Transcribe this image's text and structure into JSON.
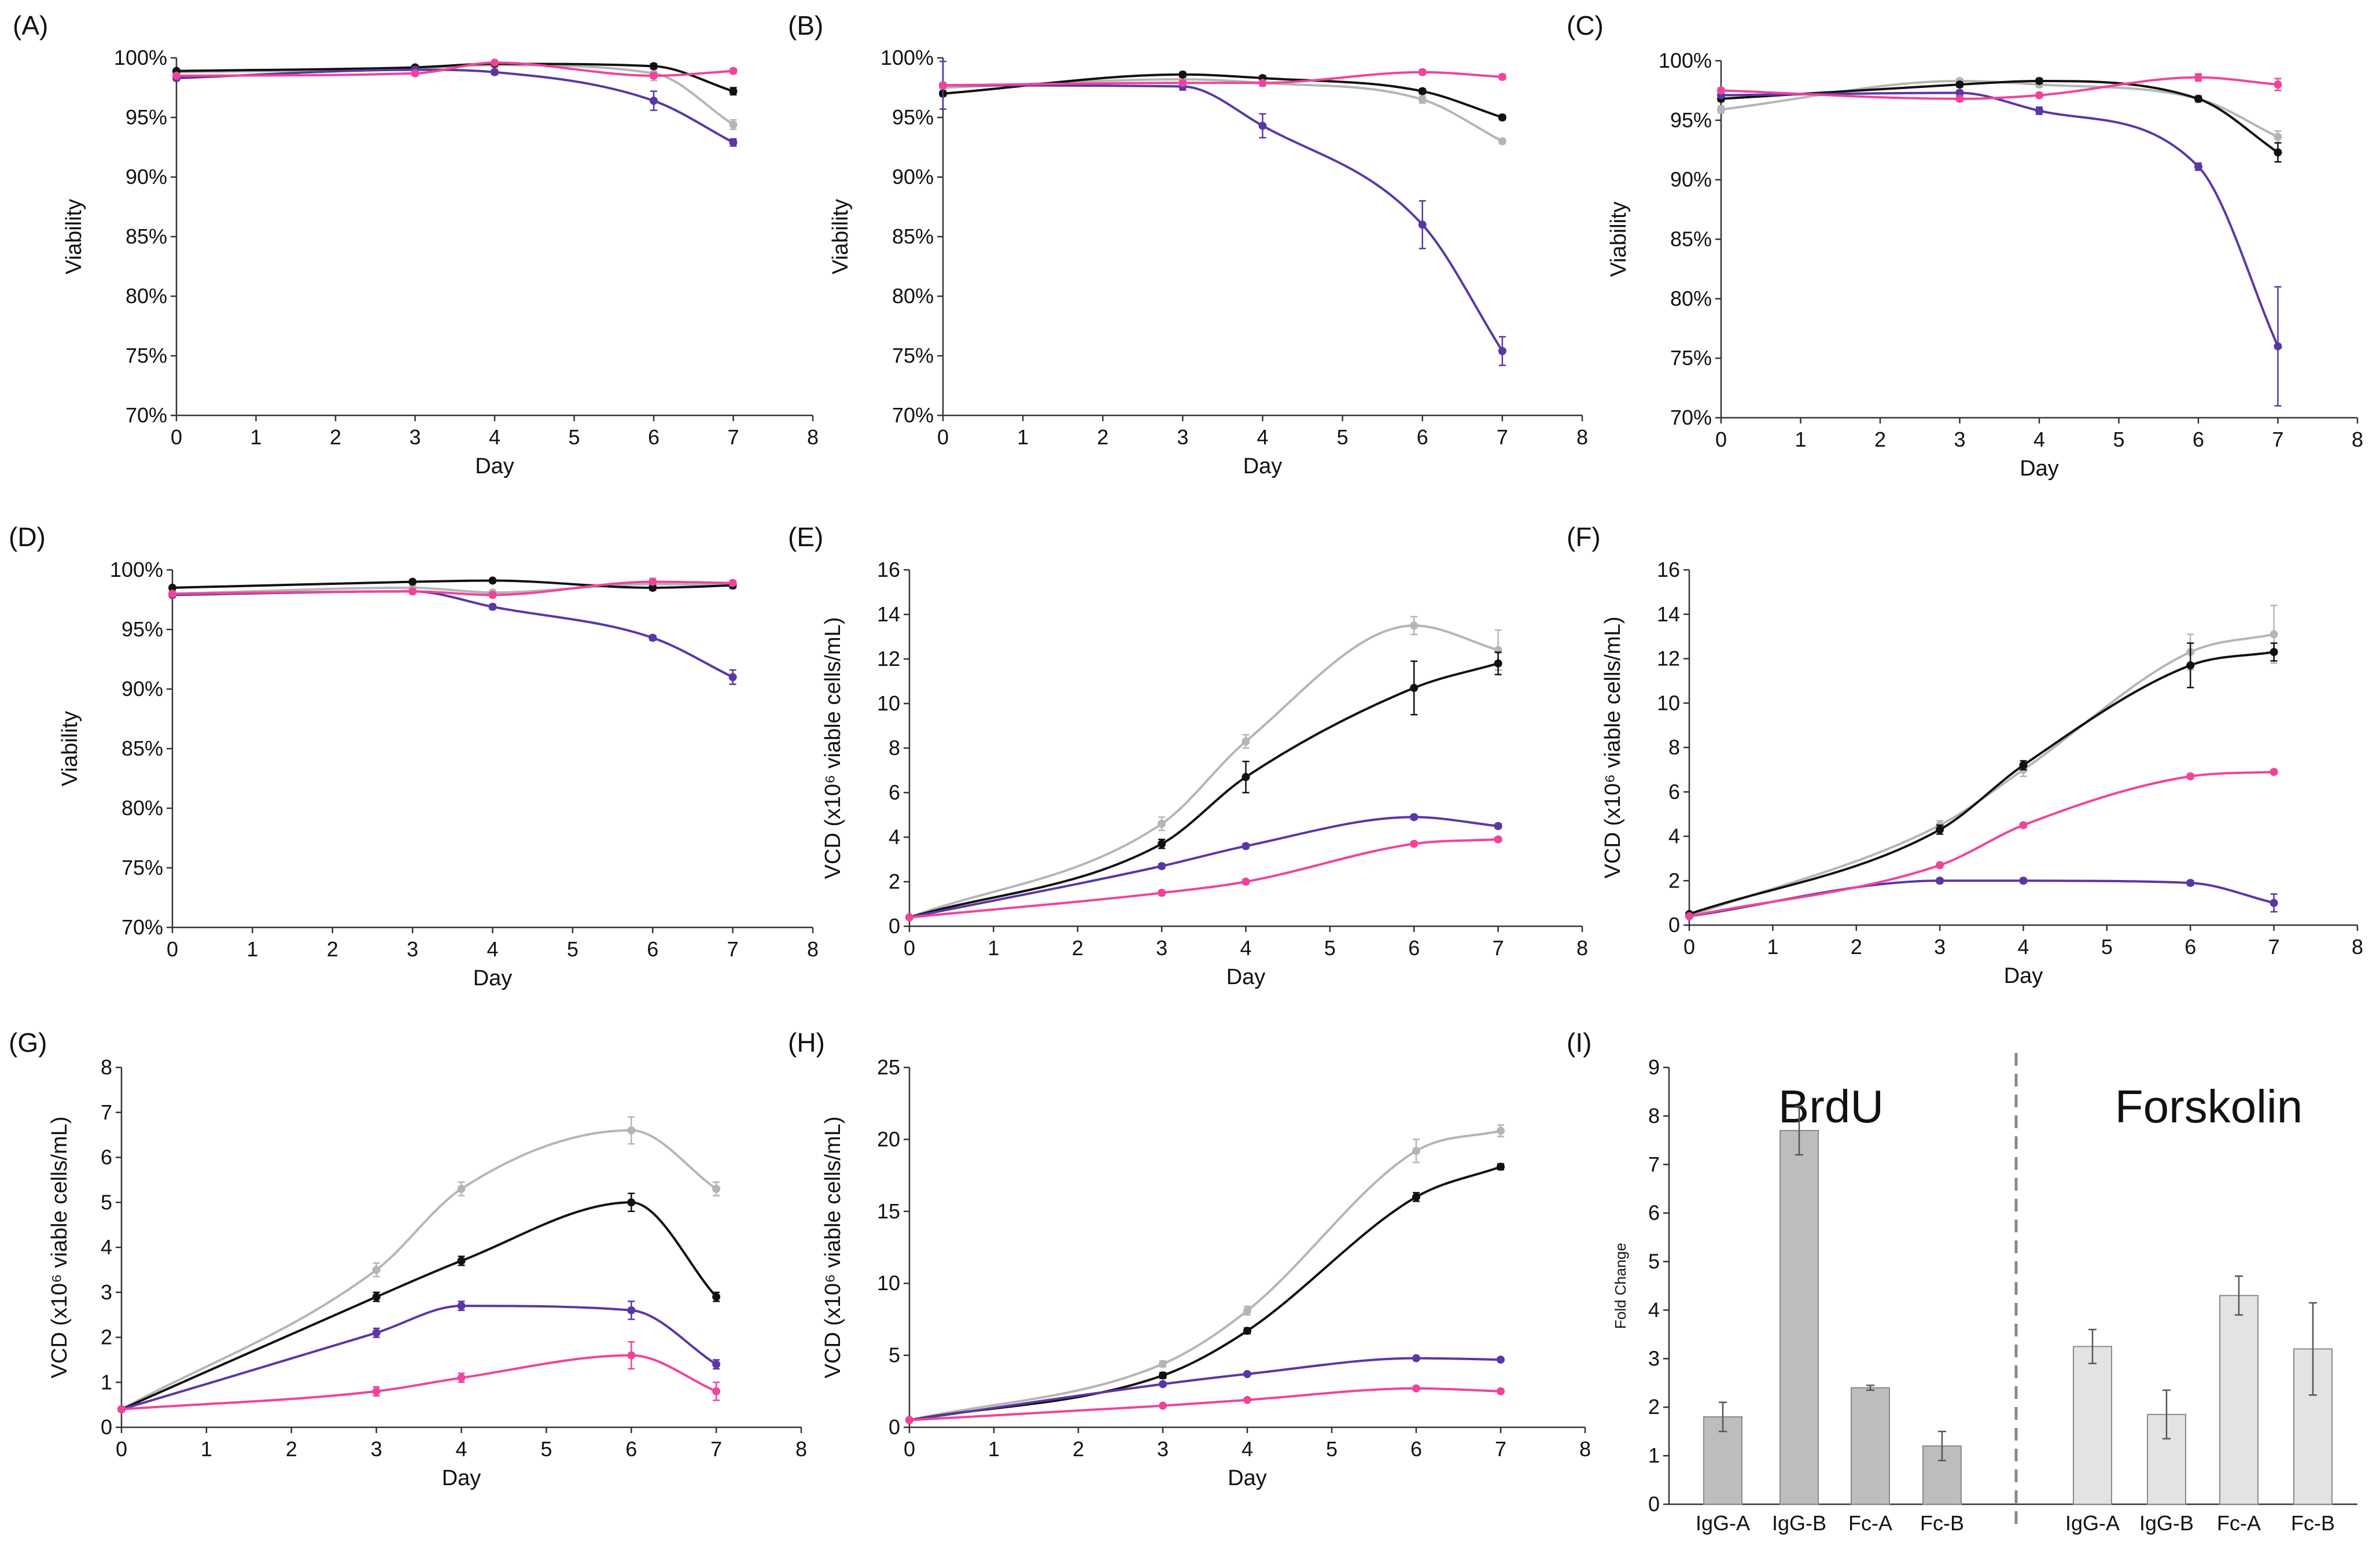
{
  "series_colors": {
    "grey": "#b5b5b5",
    "black": "#111111",
    "purple": "#5b36a6",
    "pink": "#f0449a"
  },
  "chart_data": [
    {
      "panel": "(A)",
      "type": "line",
      "xlabel": "Day",
      "ylabel": "Viability",
      "xlim": [
        0,
        8
      ],
      "ylim": [
        70,
        100
      ],
      "xticks": [
        0,
        1,
        2,
        3,
        4,
        5,
        6,
        7,
        8
      ],
      "yticks": [
        70,
        75,
        80,
        85,
        90,
        95,
        100
      ],
      "ytick_labels": [
        "70%",
        "75%",
        "80%",
        "85%",
        "90%",
        "95%",
        "100%"
      ],
      "x": [
        0,
        3,
        4,
        6,
        7
      ],
      "series": [
        {
          "name": "grey",
          "values": [
            98.8,
            99.1,
            99.4,
            98.7,
            94.4
          ],
          "err": [
            0.2,
            0.2,
            0.2,
            0.6,
            0.4
          ]
        },
        {
          "name": "black",
          "values": [
            98.9,
            99.2,
            99.5,
            99.3,
            97.2
          ],
          "err": [
            0.1,
            0.1,
            0.1,
            0.2,
            0.3
          ]
        },
        {
          "name": "purple",
          "values": [
            98.3,
            99.0,
            98.8,
            96.4,
            92.9
          ],
          "err": [
            0.2,
            0.2,
            0.2,
            0.8,
            0.3
          ]
        },
        {
          "name": "pink",
          "values": [
            98.5,
            98.7,
            99.6,
            98.5,
            98.9
          ],
          "err": [
            0.1,
            0.2,
            0.1,
            0.2,
            0.2
          ]
        }
      ]
    },
    {
      "panel": "(B)",
      "type": "line",
      "xlabel": "Day",
      "ylabel": "Viability",
      "xlim": [
        0,
        8
      ],
      "ylim": [
        70,
        100
      ],
      "xticks": [
        0,
        1,
        2,
        3,
        4,
        5,
        6,
        7,
        8
      ],
      "yticks": [
        70,
        75,
        80,
        85,
        90,
        95,
        100
      ],
      "ytick_labels": [
        "70%",
        "75%",
        "80%",
        "85%",
        "90%",
        "95%",
        "100%"
      ],
      "x": [
        0,
        3,
        4,
        6,
        7
      ],
      "series": [
        {
          "name": "grey",
          "values": [
            97.5,
            98.2,
            97.9,
            96.5,
            93.0
          ],
          "err": [
            0.3,
            0.2,
            0.3,
            0.3,
            0.2
          ]
        },
        {
          "name": "black",
          "values": [
            97.0,
            98.6,
            98.3,
            97.2,
            95.0
          ],
          "err": [
            0.2,
            0.2,
            0.2,
            0.2,
            0.2
          ]
        },
        {
          "name": "purple",
          "values": [
            97.7,
            97.6,
            94.3,
            86.0,
            75.4
          ],
          "err": [
            2.0,
            0.3,
            1.0,
            2.0,
            1.2
          ]
        },
        {
          "name": "pink",
          "values": [
            97.7,
            97.9,
            97.9,
            98.8,
            98.4
          ],
          "err": [
            0.2,
            0.2,
            0.2,
            0.2,
            0.2
          ]
        }
      ]
    },
    {
      "panel": "(C)",
      "type": "line",
      "xlabel": "Day",
      "ylabel": "Viability",
      "xlim": [
        0,
        8
      ],
      "ylim": [
        70,
        100
      ],
      "xticks": [
        0,
        1,
        2,
        3,
        4,
        5,
        6,
        7,
        8
      ],
      "yticks": [
        70,
        75,
        80,
        85,
        90,
        95,
        100
      ],
      "ytick_labels": [
        "70%",
        "75%",
        "80%",
        "85%",
        "90%",
        "95%",
        "100%"
      ],
      "x": [
        0,
        3,
        4,
        6,
        7
      ],
      "series": [
        {
          "name": "grey",
          "values": [
            95.9,
            98.3,
            98.0,
            96.8,
            93.6
          ],
          "err": [
            0.3,
            0.2,
            0.2,
            0.3,
            0.5
          ]
        },
        {
          "name": "black",
          "values": [
            96.8,
            98.0,
            98.3,
            96.8,
            92.3
          ],
          "err": [
            0.2,
            0.2,
            0.2,
            0.2,
            0.8
          ]
        },
        {
          "name": "purple",
          "values": [
            97.1,
            97.3,
            95.8,
            91.1,
            76.0
          ],
          "err": [
            0.2,
            0.2,
            0.3,
            0.3,
            5.0
          ]
        },
        {
          "name": "pink",
          "values": [
            97.5,
            96.8,
            97.1,
            98.6,
            98.0
          ],
          "err": [
            0.2,
            0.2,
            0.2,
            0.3,
            0.5
          ]
        }
      ]
    },
    {
      "panel": "(D)",
      "type": "line",
      "xlabel": "Day",
      "ylabel": "Viability",
      "xlim": [
        0,
        8
      ],
      "ylim": [
        70,
        100
      ],
      "xticks": [
        0,
        1,
        2,
        3,
        4,
        5,
        6,
        7,
        8
      ],
      "yticks": [
        70,
        75,
        80,
        85,
        90,
        95,
        100
      ],
      "ytick_labels": [
        "70%",
        "75%",
        "80%",
        "85%",
        "90%",
        "95%",
        "100%"
      ],
      "x": [
        0,
        3,
        4,
        6,
        7
      ],
      "series": [
        {
          "name": "grey",
          "values": [
            98.0,
            98.5,
            98.1,
            98.8,
            98.7
          ],
          "err": [
            0.2,
            0.2,
            0.2,
            0.5,
            0.3
          ]
        },
        {
          "name": "black",
          "values": [
            98.5,
            99.0,
            99.1,
            98.5,
            98.7
          ],
          "err": [
            0.1,
            0.1,
            0.1,
            0.2,
            0.2
          ]
        },
        {
          "name": "purple",
          "values": [
            97.9,
            98.2,
            96.9,
            94.3,
            91.0
          ],
          "err": [
            0.2,
            0.2,
            0.2,
            0.2,
            0.6
          ]
        },
        {
          "name": "pink",
          "values": [
            98.0,
            98.2,
            97.9,
            99.0,
            98.9
          ],
          "err": [
            0.2,
            0.2,
            0.2,
            0.2,
            0.2
          ]
        }
      ]
    },
    {
      "panel": "(E)",
      "type": "line",
      "xlabel": "Day",
      "ylabel": "VCD (x10⁶ viable cells/mL)",
      "xlim": [
        0,
        8
      ],
      "ylim": [
        0,
        16
      ],
      "xticks": [
        0,
        1,
        2,
        3,
        4,
        5,
        6,
        7,
        8
      ],
      "yticks": [
        0,
        2,
        4,
        6,
        8,
        10,
        12,
        14,
        16
      ],
      "ytick_labels": [
        "0",
        "2",
        "4",
        "6",
        "8",
        "10",
        "12",
        "14",
        "16"
      ],
      "x": [
        0,
        3,
        4,
        6,
        7
      ],
      "series": [
        {
          "name": "grey",
          "values": [
            0.4,
            4.6,
            8.3,
            13.5,
            12.4
          ],
          "err": [
            0.05,
            0.3,
            0.3,
            0.4,
            0.9
          ]
        },
        {
          "name": "black",
          "values": [
            0.4,
            3.7,
            6.7,
            10.7,
            11.8
          ],
          "err": [
            0.05,
            0.2,
            0.7,
            1.2,
            0.5
          ]
        },
        {
          "name": "purple",
          "values": [
            0.4,
            2.7,
            3.6,
            4.9,
            4.5
          ],
          "err": [
            0.05,
            0.1,
            0.1,
            0.1,
            0.1
          ]
        },
        {
          "name": "pink",
          "values": [
            0.4,
            1.5,
            2.0,
            3.7,
            3.9
          ],
          "err": [
            0.05,
            0.1,
            0.1,
            0.1,
            0.1
          ]
        }
      ]
    },
    {
      "panel": "(F)",
      "type": "line",
      "xlabel": "Day",
      "ylabel": "VCD (x10⁶ viable cells/mL)",
      "xlim": [
        0,
        8
      ],
      "ylim": [
        0,
        16
      ],
      "xticks": [
        0,
        1,
        2,
        3,
        4,
        5,
        6,
        7,
        8
      ],
      "yticks": [
        0,
        2,
        4,
        6,
        8,
        10,
        12,
        14,
        16
      ],
      "ytick_labels": [
        "0",
        "2",
        "4",
        "6",
        "8",
        "10",
        "12",
        "14",
        "16"
      ],
      "x": [
        0,
        3,
        4,
        6,
        7
      ],
      "series": [
        {
          "name": "grey",
          "values": [
            0.4,
            4.5,
            7.0,
            12.3,
            13.1
          ],
          "err": [
            0.05,
            0.2,
            0.3,
            0.8,
            1.3
          ]
        },
        {
          "name": "black",
          "values": [
            0.5,
            4.3,
            7.2,
            11.7,
            12.3
          ],
          "err": [
            0.05,
            0.2,
            0.2,
            1.0,
            0.4
          ]
        },
        {
          "name": "purple",
          "values": [
            0.4,
            2.0,
            2.0,
            1.9,
            1.0
          ],
          "err": [
            0.05,
            0.1,
            0.1,
            0.1,
            0.4
          ]
        },
        {
          "name": "pink",
          "values": [
            0.4,
            2.7,
            4.5,
            6.7,
            6.9
          ],
          "err": [
            0.05,
            0.1,
            0.1,
            0.1,
            0.1
          ]
        }
      ]
    },
    {
      "panel": "(G)",
      "type": "line",
      "xlabel": "Day",
      "ylabel": "VCD (x10⁶ viable cells/mL)",
      "xlim": [
        0,
        8
      ],
      "ylim": [
        0,
        8
      ],
      "xticks": [
        0,
        1,
        2,
        3,
        4,
        5,
        6,
        7,
        8
      ],
      "yticks": [
        0,
        1,
        2,
        3,
        4,
        5,
        6,
        7,
        8
      ],
      "ytick_labels": [
        "0",
        "1",
        "2",
        "3",
        "4",
        "5",
        "6",
        "7",
        "8"
      ],
      "x": [
        0,
        3,
        4,
        6,
        7
      ],
      "series": [
        {
          "name": "grey",
          "values": [
            0.4,
            3.5,
            5.3,
            6.6,
            5.3
          ],
          "err": [
            0.05,
            0.15,
            0.15,
            0.3,
            0.15
          ]
        },
        {
          "name": "black",
          "values": [
            0.4,
            2.9,
            3.7,
            5.0,
            2.9
          ],
          "err": [
            0.05,
            0.1,
            0.1,
            0.2,
            0.1
          ]
        },
        {
          "name": "purple",
          "values": [
            0.4,
            2.1,
            2.7,
            2.6,
            1.4
          ],
          "err": [
            0.05,
            0.1,
            0.1,
            0.2,
            0.1
          ]
        },
        {
          "name": "pink",
          "values": [
            0.4,
            0.8,
            1.1,
            1.6,
            0.8
          ],
          "err": [
            0.05,
            0.1,
            0.1,
            0.3,
            0.2
          ]
        }
      ]
    },
    {
      "panel": "(H)",
      "type": "line",
      "xlabel": "Day",
      "ylabel": "VCD (x10⁶ viable cells/mL)",
      "xlim": [
        0,
        8
      ],
      "ylim": [
        0,
        25
      ],
      "xticks": [
        0,
        1,
        2,
        3,
        4,
        5,
        6,
        7,
        8
      ],
      "yticks": [
        0,
        5,
        10,
        15,
        20,
        25
      ],
      "ytick_labels": [
        "0",
        "5",
        "10",
        "15",
        "20",
        "25"
      ],
      "x": [
        0,
        3,
        4,
        6,
        7
      ],
      "series": [
        {
          "name": "grey",
          "values": [
            0.5,
            4.4,
            8.1,
            19.2,
            20.6
          ],
          "err": [
            0.05,
            0.2,
            0.3,
            0.8,
            0.4
          ]
        },
        {
          "name": "black",
          "values": [
            0.5,
            3.6,
            6.7,
            16.0,
            18.1
          ],
          "err": [
            0.05,
            0.2,
            0.2,
            0.3,
            0.2
          ]
        },
        {
          "name": "purple",
          "values": [
            0.5,
            3.0,
            3.7,
            4.8,
            4.7
          ],
          "err": [
            0.05,
            0.1,
            0.1,
            0.1,
            0.1
          ]
        },
        {
          "name": "pink",
          "values": [
            0.5,
            1.5,
            1.9,
            2.7,
            2.5
          ],
          "err": [
            0.05,
            0.1,
            0.1,
            0.1,
            0.1
          ]
        }
      ]
    },
    {
      "panel": "(I)",
      "type": "bar",
      "ylabel": "Fold Change",
      "ylim": [
        0,
        9
      ],
      "yticks": [
        0,
        1,
        2,
        3,
        4,
        5,
        6,
        7,
        8,
        9
      ],
      "ytick_labels": [
        "0",
        "1",
        "2",
        "3",
        "4",
        "5",
        "6",
        "7",
        "8",
        "9"
      ],
      "groups": [
        {
          "title": "BrdU",
          "color": "#bdbdbd",
          "categories": [
            "IgG-A",
            "IgG-B",
            "Fc-A",
            "Fc-B"
          ],
          "values": [
            1.8,
            7.7,
            2.4,
            1.2
          ],
          "err": [
            0.3,
            0.5,
            0.05,
            0.3
          ]
        },
        {
          "title": "Forskolin",
          "color": "#e3e3e3",
          "categories": [
            "IgG-A",
            "IgG-B",
            "Fc-A",
            "Fc-B"
          ],
          "values": [
            3.25,
            1.85,
            4.3,
            3.2
          ],
          "err": [
            0.35,
            0.5,
            0.4,
            0.95
          ]
        }
      ]
    }
  ]
}
